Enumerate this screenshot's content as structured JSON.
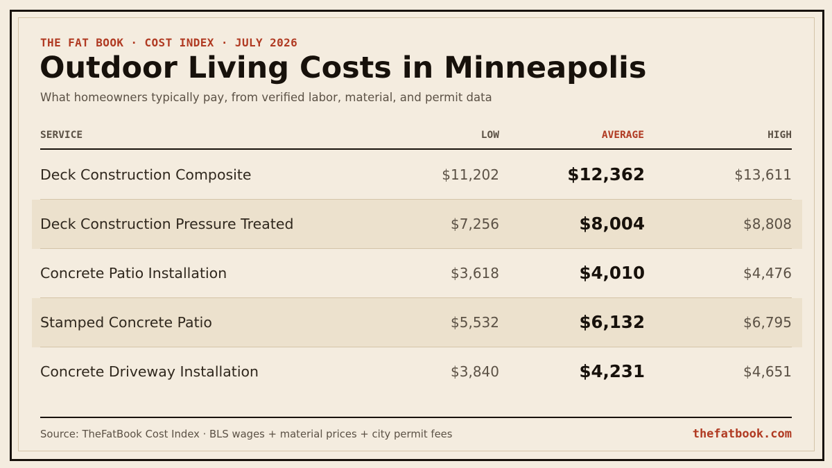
{
  "header": {
    "kicker": "THE FAT BOOK · COST INDEX · JULY 2026",
    "title": "Outdoor Living Costs in Minneapolis",
    "subtitle": "What homeowners typically pay, from verified labor, material, and permit data"
  },
  "table": {
    "columns": {
      "service": "SERVICE",
      "low": "LOW",
      "average": "AVERAGE",
      "high": "HIGH"
    },
    "rows": [
      {
        "service": "Deck Construction Composite",
        "low": "$11,202",
        "average": "$12,362",
        "high": "$13,611"
      },
      {
        "service": "Deck Construction Pressure Treated",
        "low": "$7,256",
        "average": "$8,004",
        "high": "$8,808"
      },
      {
        "service": "Concrete Patio Installation",
        "low": "$3,618",
        "average": "$4,010",
        "high": "$4,476"
      },
      {
        "service": "Stamped Concrete Patio",
        "low": "$5,532",
        "average": "$6,132",
        "high": "$6,795"
      },
      {
        "service": "Concrete Driveway Installation",
        "low": "$3,840",
        "average": "$4,231",
        "high": "$4,651"
      }
    ]
  },
  "footer": {
    "source": "Source: TheFatBook Cost Index · BLS wages + material prices + city permit fees",
    "site": "thefatbook.com"
  },
  "colors": {
    "background": "#f4ecdf",
    "accent": "#b03a22",
    "ink": "#17110b",
    "row_shade": "#ece1cd"
  }
}
